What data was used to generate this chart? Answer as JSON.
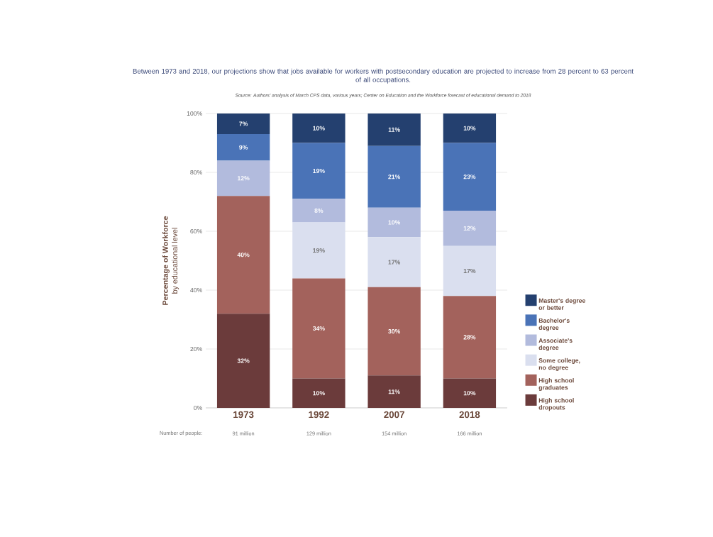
{
  "chart_data": {
    "type": "bar",
    "stacked": true,
    "title": "Between 1973 and 2018, our projections show that jobs available for workers with postsecondary education are projected to increase from 28 percent to 63 percent of all occupations.",
    "subtitle": "Source: Authors' analysis of March CPS data, various years; Center on Education and the Workforce forecast of educational demand to 2018",
    "ylabel": "Percentage of Workforce",
    "annotations": [
      "by educational level",
      "Number of people:",
      "91 million",
      "129 million",
      "154 million",
      "166 million"
    ],
    "categories": [
      "1973",
      "1992",
      "2007",
      "2018"
    ],
    "series": [
      {
        "name": "High school dropouts",
        "color": "#6b3b3b",
        "values": [
          32,
          10,
          11,
          10
        ],
        "value_labels": [
          "32%",
          "10%",
          "11%",
          "10%"
        ]
      },
      {
        "name": "High school graduates",
        "color": "#a3625c",
        "values": [
          40,
          34,
          30,
          28
        ],
        "value_labels": [
          "40%",
          "34%",
          "30%",
          "28%"
        ]
      },
      {
        "name": "Some college, no degree",
        "color": "#dadfef",
        "values": [
          0,
          19,
          17,
          17
        ],
        "value_labels": [
          null,
          "19%",
          "17%",
          "17%"
        ]
      },
      {
        "name": "Associate's degree",
        "color": "#b2bbdd",
        "values": [
          12,
          8,
          10,
          12
        ],
        "value_labels": [
          "12%",
          "8%",
          "10%",
          "12%"
        ]
      },
      {
        "name": "Bachelor's degree",
        "color": "#4a73b7",
        "values": [
          9,
          19,
          21,
          23
        ],
        "value_labels": [
          "9%",
          "19%",
          "21%",
          "23%"
        ]
      },
      {
        "name": "Master's degree or better",
        "color": "#24406f",
        "values": [
          7,
          10,
          11,
          10
        ],
        "value_labels": [
          "7%",
          "10%",
          "11%",
          "10%"
        ]
      }
    ],
    "ylim": [
      0,
      100
    ],
    "yticks": [
      {
        "value": 0,
        "label": "0%"
      },
      {
        "value": 20,
        "label": "20%"
      },
      {
        "value": 40,
        "label": "40%"
      },
      {
        "value": 60,
        "label": "60%"
      },
      {
        "value": 80,
        "label": "80%"
      },
      {
        "value": 100,
        "label": "100%"
      }
    ],
    "grid": "y",
    "legend": "right"
  }
}
